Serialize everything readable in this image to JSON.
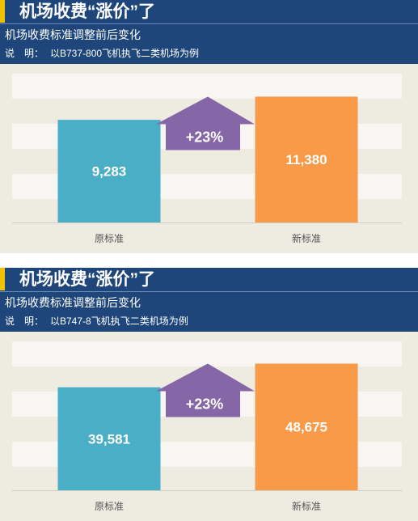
{
  "panels": [
    {
      "title": "机场收费“涨价”了",
      "subtitle": "机场收费标准调整前后变化",
      "note_label": "说　明：",
      "note_text": "以B737-800飞机执飞二类机场为例"
    },
    {
      "title": "机场收费“涨价”了",
      "subtitle": "机场收费标准调整前后变化",
      "note_label": "说　明：",
      "note_text": "以B747-8飞机执飞二类机场为例"
    }
  ],
  "colors": {
    "header": "#1f467a",
    "accent": "#f2c200",
    "plot_bg": "#eeebe1",
    "band": "#f7f6f2",
    "old_bar": "#4aaec6",
    "new_bar": "#f89a48",
    "arrow": "#8566a6"
  },
  "chart_data": [
    {
      "type": "bar",
      "categories": [
        "原标准",
        "新标准"
      ],
      "values": [
        9283,
        11380
      ],
      "value_labels": [
        "9,283",
        "11,380"
      ],
      "change_label": "+23%",
      "ylim": [
        0,
        12000
      ],
      "grid": "horizontal bands",
      "legend": "none"
    },
    {
      "type": "bar",
      "categories": [
        "原标准",
        "新标准"
      ],
      "values": [
        39581,
        48675
      ],
      "value_labels": [
        "39,581",
        "48,675"
      ],
      "change_label": "+23%",
      "ylim": [
        0,
        51000
      ],
      "grid": "horizontal bands",
      "legend": "none"
    }
  ]
}
